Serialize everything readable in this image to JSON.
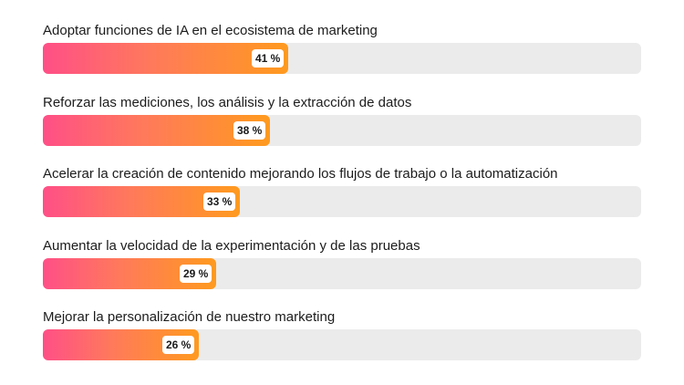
{
  "chart_data": {
    "type": "bar",
    "orientation": "horizontal",
    "categories": [
      "Adoptar funciones de IA en el ecosistema de marketing",
      "Reforzar las mediciones, los análisis y la extracción de datos",
      "Acelerar la creación de contenido mejorando los flujos de trabajo o la automatización",
      "Aumentar la velocidad de la experimentación y de las pruebas",
      "Mejorar la personalización de nuestro marketing"
    ],
    "values": [
      41,
      38,
      33,
      29,
      26
    ],
    "value_labels": [
      "41 %",
      "38 %",
      "33 %",
      "29 %",
      "26 %"
    ],
    "xlim": [
      0,
      100
    ],
    "grid": false,
    "legend": "none",
    "colors": {
      "fill_start": "#ff4f87",
      "fill_end": "#ff9a1e",
      "track": "#ebebeb",
      "label_box": "#ffffff"
    }
  }
}
